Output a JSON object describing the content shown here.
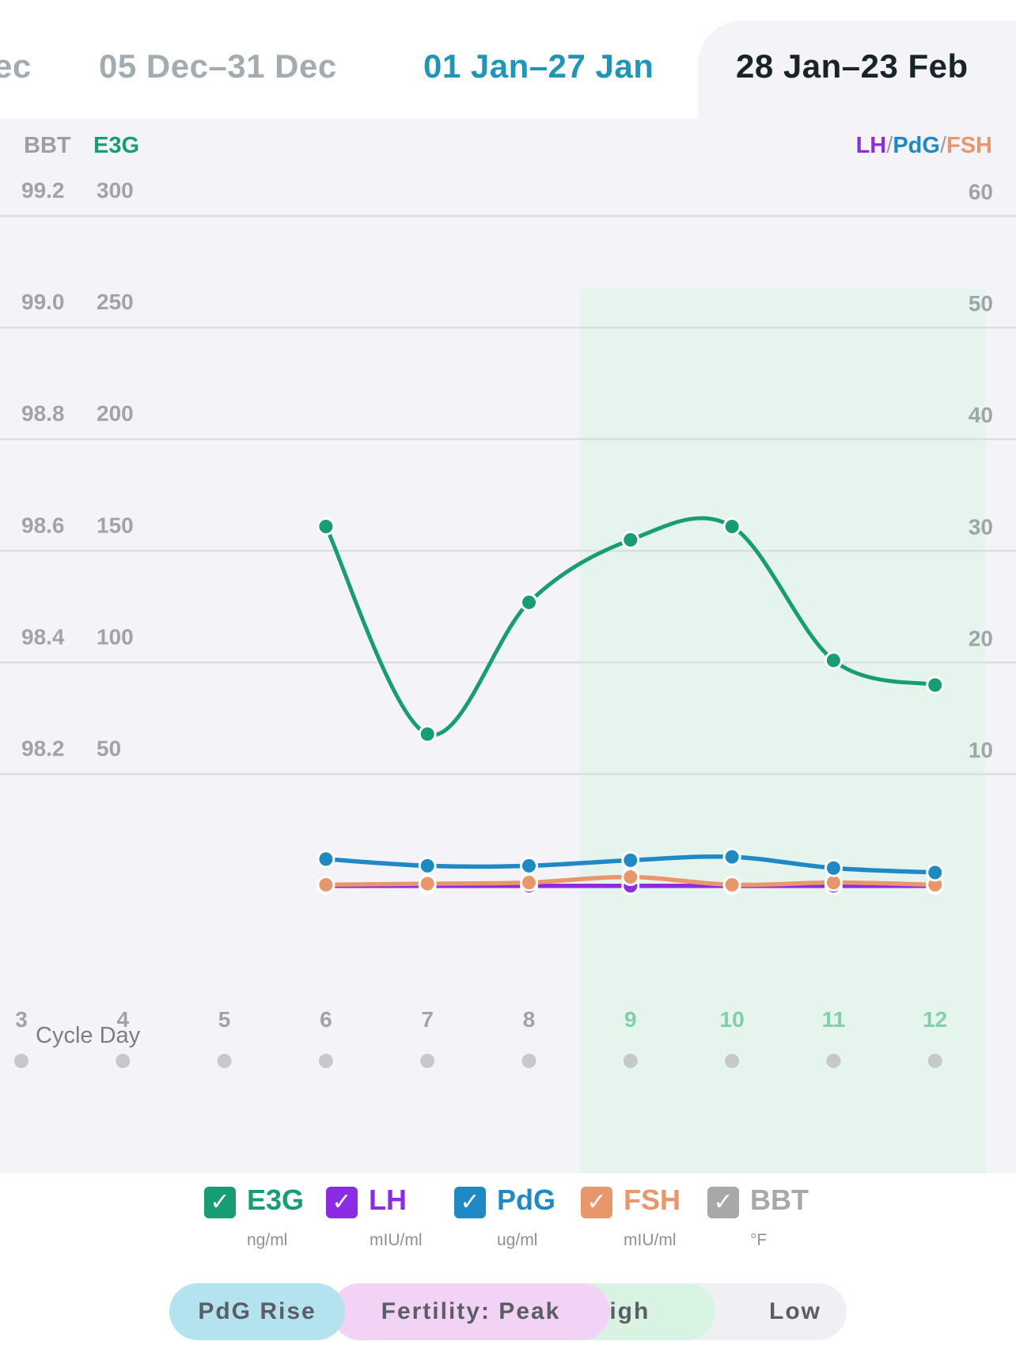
{
  "tabs": [
    {
      "label": "ec"
    },
    {
      "label": "05 Dec–31 Dec"
    },
    {
      "label": "01 Jan–27 Jan"
    },
    {
      "label": "28 Jan–23 Feb"
    }
  ],
  "axis_headers": {
    "left_bbt": "BBT",
    "left_e3g": "E3G",
    "right_lh": "LH",
    "right_pdg": "PdG",
    "right_fsh": "FSH",
    "separator": "/"
  },
  "x_axis_label": "Cycle Day",
  "colors": {
    "e3g": "#169d72",
    "lh": "#8b2be2",
    "pdg": "#1e89c4",
    "fsh": "#e8966a",
    "bbt": "#a8a8a8",
    "fertile_window": "#e6f4ee"
  },
  "chart_data": {
    "type": "line",
    "x": [
      3,
      4,
      5,
      6,
      7,
      8,
      9,
      10,
      11,
      12
    ],
    "xlabel": "Cycle Day",
    "highlighted_days": [
      9,
      10,
      11,
      12
    ],
    "axes": {
      "left_bbt": {
        "label": "BBT",
        "ticks": [
          "99.2",
          "99.0",
          "98.8",
          "98.6",
          "98.4",
          "98.2"
        ],
        "range": [
          98.0,
          99.2
        ]
      },
      "left_e3g": {
        "label": "E3G",
        "ticks": [
          "300",
          "250",
          "200",
          "150",
          "100",
          "50"
        ],
        "range": [
          0,
          300
        ]
      },
      "right": {
        "label": "LH/PdG/FSH",
        "ticks": [
          "60",
          "50",
          "40",
          "30",
          "20",
          "10"
        ],
        "range": [
          0,
          60
        ]
      }
    },
    "series": [
      {
        "name": "E3G",
        "axis": "left_e3g",
        "x": [
          6,
          7,
          8,
          9,
          10,
          11,
          12
        ],
        "values": [
          168,
          75,
          134,
          162,
          168,
          108,
          97
        ]
      },
      {
        "name": "PdG",
        "axis": "right",
        "x": [
          6,
          7,
          8,
          9,
          10,
          11,
          12
        ],
        "values": [
          3.8,
          3.2,
          3.2,
          3.7,
          4.0,
          3.0,
          2.6
        ]
      },
      {
        "name": "FSH",
        "axis": "right",
        "x": [
          6,
          7,
          8,
          9,
          10,
          11,
          12
        ],
        "values": [
          1.5,
          1.6,
          1.7,
          2.2,
          1.5,
          1.7,
          1.5
        ]
      },
      {
        "name": "LH",
        "axis": "right",
        "x": [
          6,
          7,
          8,
          9,
          10,
          11,
          12
        ],
        "values": [
          1.4,
          1.4,
          1.4,
          1.4,
          1.4,
          1.4,
          1.4
        ]
      }
    ],
    "grid": true
  },
  "legend": [
    {
      "key": "e3g",
      "name": "E3G",
      "unit": "ng/ml",
      "checked": true,
      "check": "✓"
    },
    {
      "key": "lh",
      "name": "LH",
      "unit": "mIU/ml",
      "checked": true,
      "check": "✓"
    },
    {
      "key": "pdg",
      "name": "PdG",
      "unit": "ug/ml",
      "checked": true,
      "check": "✓"
    },
    {
      "key": "fsh",
      "name": "FSH",
      "unit": "mIU/ml",
      "checked": true,
      "check": "✓"
    },
    {
      "key": "bbt",
      "name": "BBT",
      "unit": "°F",
      "checked": true,
      "check": "✓"
    }
  ],
  "phases": [
    {
      "label": "PdG Rise",
      "color": "#b4e3f0"
    },
    {
      "label": "Fertility: Peak",
      "color": "#f2d3f6"
    },
    {
      "label": "High",
      "color": "#d9f3e3"
    },
    {
      "label": "Low",
      "color": "#efeff4"
    }
  ]
}
